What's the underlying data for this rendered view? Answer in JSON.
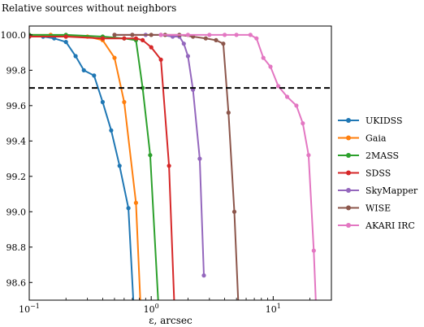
{
  "chart_data": {
    "type": "line",
    "title": "",
    "ylabel": "Relative sources without neighbors",
    "xlabel": "ε, arcsec",
    "xscale": "log",
    "xlim": [
      0.1,
      30
    ],
    "ylim": [
      98.5,
      100.05
    ],
    "xticks": [
      {
        "value": 0.1,
        "base": "10",
        "exp": "−1"
      },
      {
        "value": 1,
        "base": "10",
        "exp": "0"
      },
      {
        "value": 10,
        "base": "10",
        "exp": "1"
      }
    ],
    "yticks": [
      {
        "value": 100.0,
        "label": "100.0"
      },
      {
        "value": 99.8,
        "label": "99.8"
      },
      {
        "value": 99.6,
        "label": "99.6"
      },
      {
        "value": 99.4,
        "label": "99.4"
      },
      {
        "value": 99.2,
        "label": "99.2"
      },
      {
        "value": 99.0,
        "label": "99.0"
      },
      {
        "value": 98.8,
        "label": "98.8"
      },
      {
        "value": 98.6,
        "label": "98.6"
      }
    ],
    "grid": false,
    "legend_position": "right",
    "threshold_line": {
      "y": 99.7,
      "style": "dashed",
      "color": "#000000"
    },
    "series": [
      {
        "name": "UKIDSS",
        "color": "#1f77b4",
        "x": [
          0.1,
          0.13,
          0.16,
          0.2,
          0.24,
          0.28,
          0.34,
          0.4,
          0.47,
          0.55,
          0.65,
          0.72
        ],
        "y": [
          99.99,
          99.99,
          99.98,
          99.96,
          99.88,
          99.8,
          99.77,
          99.62,
          99.46,
          99.26,
          99.02,
          98.45
        ]
      },
      {
        "name": "Gaia",
        "color": "#ff7f0e",
        "x": [
          0.1,
          0.15,
          0.2,
          0.3,
          0.4,
          0.5,
          0.6,
          0.75,
          0.82
        ],
        "y": [
          100.0,
          100.0,
          99.99,
          99.99,
          99.97,
          99.87,
          99.62,
          99.05,
          98.45
        ]
      },
      {
        "name": "2MASS",
        "color": "#2ca02c",
        "x": [
          0.1,
          0.2,
          0.4,
          0.6,
          0.75,
          0.85,
          0.98,
          1.15
        ],
        "y": [
          100.0,
          100.0,
          99.99,
          99.98,
          99.97,
          99.7,
          99.32,
          98.45
        ]
      },
      {
        "name": "SDSS",
        "color": "#d62728",
        "x": [
          0.1,
          0.2,
          0.4,
          0.6,
          0.75,
          0.85,
          1.0,
          1.2,
          1.4,
          1.55
        ],
        "y": [
          99.99,
          99.99,
          99.98,
          99.98,
          99.98,
          99.97,
          99.93,
          99.86,
          99.26,
          98.45
        ]
      },
      {
        "name": "SkyMapper",
        "color": "#9467bd",
        "x": [
          0.5,
          0.7,
          0.9,
          1.2,
          1.5,
          1.7,
          1.85,
          2.0,
          2.2,
          2.5,
          2.7
        ],
        "y": [
          100.0,
          100.0,
          100.0,
          100.0,
          99.99,
          99.99,
          99.95,
          99.88,
          99.69,
          99.3,
          98.64
        ]
      },
      {
        "name": "WISE",
        "color": "#8c564b",
        "x": [
          0.5,
          0.7,
          1.0,
          1.3,
          1.7,
          2.2,
          2.8,
          3.4,
          3.9,
          4.3,
          4.8,
          5.2
        ],
        "y": [
          100.0,
          100.0,
          100.0,
          100.0,
          100.0,
          99.99,
          99.98,
          99.97,
          99.95,
          99.56,
          99.0,
          98.45
        ]
      },
      {
        "name": "AKARI IRC",
        "color": "#e377c2",
        "x": [
          1.2,
          2.0,
          3.0,
          4.0,
          5.0,
          6.5,
          7.3,
          8.3,
          9.5,
          11.0,
          13.0,
          15.5,
          17.5,
          19.5,
          21.5,
          22.5
        ],
        "y": [
          100.0,
          100.0,
          100.0,
          100.0,
          100.0,
          100.0,
          99.98,
          99.87,
          99.82,
          99.71,
          99.65,
          99.6,
          99.5,
          99.32,
          98.78,
          98.45
        ]
      }
    ]
  }
}
